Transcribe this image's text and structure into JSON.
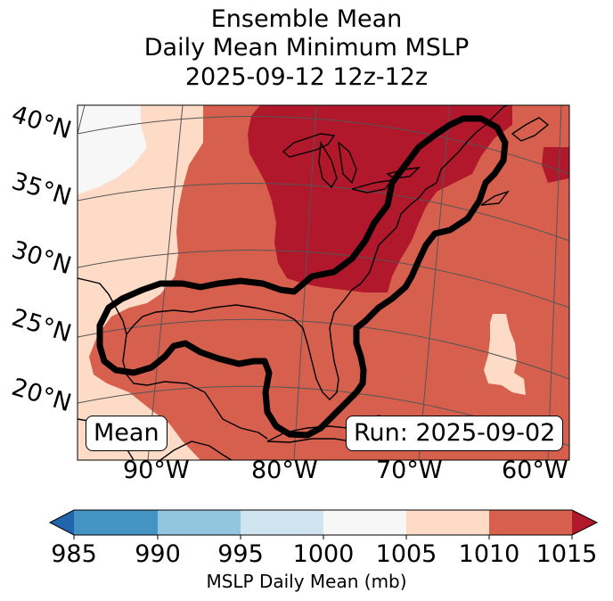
{
  "title": {
    "line1": "Ensemble Mean",
    "line2": "Daily Mean Minimum MSLP",
    "line3": "2025-09-12 12z-12z"
  },
  "map": {
    "lat_labels": [
      "40°N",
      "35°N",
      "30°N",
      "25°N",
      "20°N"
    ],
    "lon_labels": [
      "90°W",
      "80°W",
      "70°W",
      "60°W"
    ],
    "mean_label": "Mean",
    "run_label": "Run: 2025-09-02"
  },
  "colorbar": {
    "ticks": [
      "985",
      "990",
      "995",
      "1000",
      "1005",
      "1010",
      "1015"
    ],
    "label": "MSLP Daily Mean (mb)",
    "colors": {
      "under": "#2166ac",
      "985-990": "#4393c3",
      "990-995": "#92c5de",
      "995-1000": "#d1e5f0",
      "1000-1005": "#f7f7f7",
      "1005-1010": "#fddbc7",
      "1010-1015": "#d6604d",
      "over": "#b2182b"
    }
  }
}
